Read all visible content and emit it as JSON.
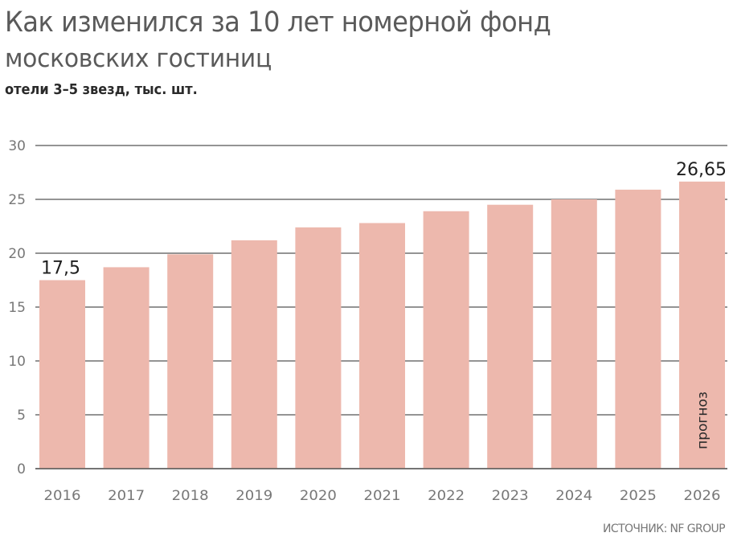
{
  "header": {
    "title_line1": "Как изменился за 10 лет номерной фонд",
    "title_line2": "московских гостиниц",
    "subtitle": "отели 3–5 звезд, тыс. шт."
  },
  "source": "ИСТОЧНИК: NF GROUP",
  "colors": {
    "bar": "#EDB8AD",
    "grid": "#555555",
    "tick_text": "#777777",
    "value_label": "#1f1f1f"
  },
  "chart_data": {
    "type": "bar",
    "title": "Как изменился за 10 лет номерной фонд московских гостиниц",
    "subtitle": "отели 3–5 звезд, тыс. шт.",
    "xlabel": "",
    "ylabel": "тыс. шт.",
    "categories": [
      "2016",
      "2017",
      "2018",
      "2019",
      "2020",
      "2021",
      "2022",
      "2023",
      "2024",
      "2025",
      "2026"
    ],
    "values": [
      17.5,
      18.7,
      19.9,
      21.2,
      22.4,
      22.8,
      23.9,
      24.5,
      25.0,
      25.9,
      26.65
    ],
    "value_labels": [
      {
        "index": 0,
        "text": "17,5"
      },
      {
        "index": 10,
        "text": "26,65"
      }
    ],
    "annotations": [
      {
        "index": 10,
        "text": "прогноз",
        "orientation": "vertical"
      }
    ],
    "ylim": [
      0,
      30
    ],
    "yticks": [
      0,
      5,
      10,
      15,
      20,
      25,
      30
    ],
    "grid": true,
    "legend": "none",
    "source": "ИСТОЧНИК: NF GROUP"
  }
}
